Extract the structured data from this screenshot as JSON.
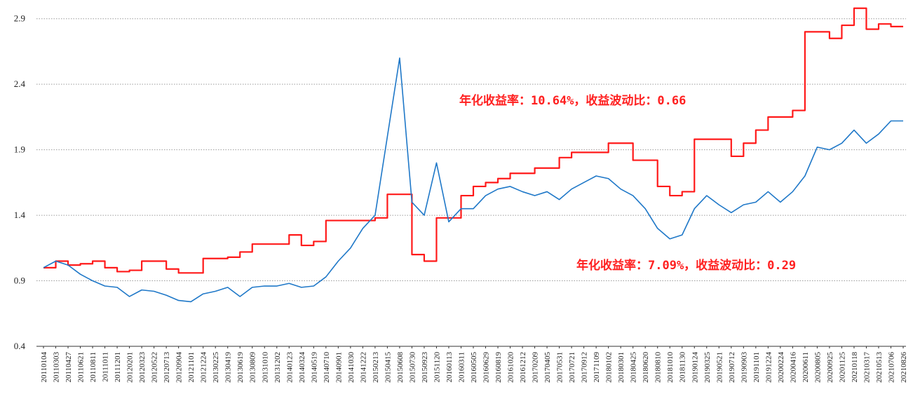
{
  "chart_data": {
    "type": "line",
    "ylim": [
      0.4,
      3.0
    ],
    "yticks": [
      "0.4",
      "0.9",
      "1.4",
      "1.9",
      "2.4",
      "2.9"
    ],
    "grid": true,
    "x_tick_labels": [
      "20110104",
      "20110303",
      "20110427",
      "20110621",
      "20110811",
      "20111011",
      "20111201",
      "20120201",
      "20120323",
      "20120522",
      "20120713",
      "20120904",
      "20121101",
      "20121224",
      "20130225",
      "20130419",
      "20130619",
      "20130809",
      "20131010",
      "20131202",
      "20140123",
      "20140324",
      "20140519",
      "20140710",
      "20140901",
      "20141030",
      "20141222",
      "20150213",
      "20150415",
      "20150608",
      "20150730",
      "20150923",
      "20151120",
      "20160113",
      "20160311",
      "20160505",
      "20160629",
      "20160819",
      "20161020",
      "20161212",
      "20170209",
      "20170405",
      "20170531",
      "20170721",
      "20170912",
      "20171109",
      "20180102",
      "20180301",
      "20180425",
      "20180620",
      "20180810",
      "20181010",
      "20181130",
      "20190124",
      "20190325",
      "20190521",
      "20190712",
      "20190903",
      "20191101",
      "20191224",
      "20200224",
      "20200416",
      "20200611",
      "20200805",
      "20200925",
      "20201125",
      "20210118",
      "20210317",
      "20210513",
      "20210706",
      "20210826"
    ],
    "series": [
      {
        "color": "#ff1a1a",
        "values": [
          1.0,
          1.05,
          1.02,
          1.03,
          1.05,
          1.0,
          0.97,
          0.98,
          1.05,
          1.05,
          0.99,
          0.96,
          0.96,
          1.07,
          1.07,
          1.08,
          1.12,
          1.18,
          1.18,
          1.18,
          1.25,
          1.17,
          1.2,
          1.36,
          1.36,
          1.36,
          1.36,
          1.38,
          1.56,
          1.56,
          1.1,
          1.05,
          1.38,
          1.38,
          1.55,
          1.62,
          1.65,
          1.68,
          1.72,
          1.72,
          1.76,
          1.76,
          1.84,
          1.88,
          1.88,
          1.88,
          1.95,
          1.95,
          1.82,
          1.82,
          1.62,
          1.55,
          1.58,
          1.98,
          1.98,
          1.98,
          1.85,
          1.95,
          2.05,
          2.15,
          2.15,
          2.2,
          2.8,
          2.8,
          2.75,
          2.85,
          2.98,
          2.82,
          2.86,
          2.84,
          2.84
        ]
      },
      {
        "color": "#1f78c8",
        "values": [
          1.0,
          1.05,
          1.02,
          0.95,
          0.9,
          0.86,
          0.85,
          0.78,
          0.83,
          0.82,
          0.79,
          0.75,
          0.74,
          0.8,
          0.82,
          0.85,
          0.78,
          0.85,
          0.86,
          0.86,
          0.88,
          0.85,
          0.86,
          0.93,
          1.05,
          1.15,
          1.3,
          1.4,
          2.0,
          2.6,
          1.5,
          1.4,
          1.8,
          1.35,
          1.45,
          1.45,
          1.55,
          1.6,
          1.62,
          1.58,
          1.55,
          1.58,
          1.52,
          1.6,
          1.65,
          1.7,
          1.68,
          1.6,
          1.55,
          1.45,
          1.3,
          1.22,
          1.25,
          1.45,
          1.55,
          1.48,
          1.42,
          1.48,
          1.5,
          1.58,
          1.5,
          1.58,
          1.7,
          1.92,
          1.9,
          1.95,
          2.05,
          1.95,
          2.02,
          2.12,
          2.12
        ]
      }
    ],
    "annotations": [
      {
        "text": "年化收益率：10.64%，收益波动比：0.66"
      },
      {
        "text": "年化收益率：7.09%，收益波动比：0.29"
      }
    ]
  }
}
